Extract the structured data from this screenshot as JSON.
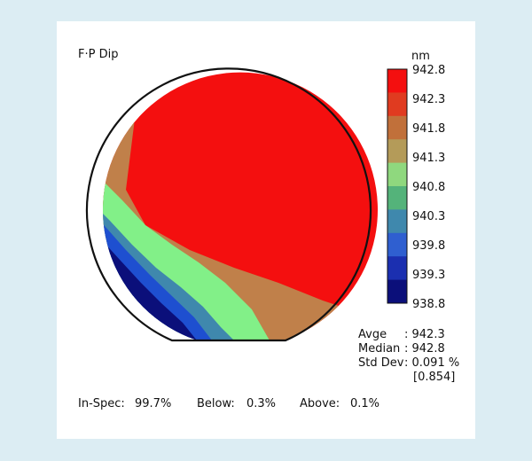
{
  "chart_data": {
    "type": "heatmap",
    "title": "F·P Dip",
    "colorbar": {
      "unit": "nm",
      "ticks": [
        "942.8",
        "942.3",
        "941.8",
        "941.3",
        "940.8",
        "940.3",
        "939.8",
        "939.3",
        "938.8"
      ],
      "range": [
        938.8,
        942.8
      ],
      "colors": [
        "#f40f0f",
        "#e03b20",
        "#c1703a",
        "#b49b59",
        "#8fd87e",
        "#54b37a",
        "#3f88ad",
        "#2f5fd0",
        "#1b2fb0",
        "#0b0f7a"
      ]
    },
    "bands": [
      {
        "label": "942.8",
        "color": "#f40f0f"
      },
      {
        "label": "941.8",
        "color": "#c0804a"
      },
      {
        "label": "940.8",
        "color": "#82f088"
      },
      {
        "label": "939.8",
        "color": "#3f88ad"
      },
      {
        "label": "939.3",
        "color": "#1e4fd0"
      },
      {
        "label": "938.8",
        "color": "#0b0f7a"
      }
    ],
    "stats": {
      "avge_label": "Avge",
      "avge_value": ": 942.3",
      "median_label": "Median",
      "median_value": ": 942.8",
      "stddev_label": "Std Dev",
      "stddev_value": ": 0.091 %",
      "range_value": "[0.854]"
    },
    "summary": {
      "in_spec_label": "In-Spec:",
      "in_spec_value": "99.7%",
      "below_label": "Below:",
      "below_value": "0.3%",
      "above_label": "Above:",
      "above_value": "0.1%"
    }
  }
}
